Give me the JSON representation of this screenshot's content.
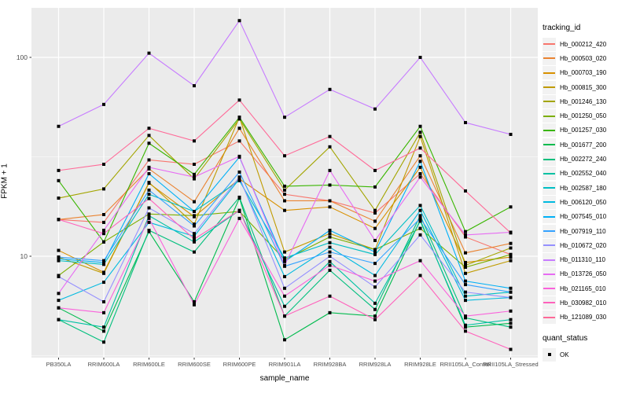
{
  "figure": {
    "x_axis": {
      "title": "sample_name"
    },
    "y_axis": {
      "title": "FPKM + 1",
      "tick_labels": [
        "100",
        "10"
      ],
      "tick_values": [
        100,
        10
      ],
      "minor_values": [
        31.6228,
        3.1623
      ],
      "scale": "log10"
    },
    "legend": {
      "tracking_title": "tracking_id",
      "quant_title": "quant_status",
      "quant_items": [
        {
          "label": "OK",
          "marker": "black-square"
        }
      ]
    },
    "colors": {
      "panel_bg": "#EBEBEB",
      "grid": "#FFFFFF",
      "axis_text": "#4D4D4D",
      "tick_mark": "#333333",
      "legend_key_bg": "#F2F2F2",
      "point": "#000000"
    }
  },
  "chart_data": {
    "type": "line",
    "title": "",
    "xlabel": "sample_name",
    "ylabel": "FPKM + 1",
    "y_scale": "log10",
    "ylim": [
      3.09,
      177
    ],
    "grid": true,
    "legend_position": "right",
    "point_marker": "filled-black-square",
    "x_categories": [
      "PB350LA",
      "RRIM600LA",
      "RRIM600LE",
      "RRIM600SE",
      "RRIM600PE",
      "RRIM901LA",
      "RRIM928BA",
      "RRIM928LA",
      "RRIM928LE",
      "RRII105LA_Control",
      "RRII105LA_Stressed"
    ],
    "series": [
      {
        "name": "Hb_000212_420",
        "color": "#F8766D",
        "values": [
          15.3,
          14.8,
          30.5,
          29,
          38,
          20.5,
          19,
          16.5,
          26,
          12.5,
          10.2
        ]
      },
      {
        "name": "Hb_000503_020",
        "color": "#EA8331",
        "values": [
          15.3,
          16.2,
          27.5,
          18.8,
          44,
          19,
          19,
          15,
          32,
          10.4,
          11.6
        ]
      },
      {
        "name": "Hb_000703_190",
        "color": "#D89000",
        "values": [
          10.7,
          8.3,
          23.3,
          15.8,
          24.5,
          17,
          17.7,
          13.8,
          28,
          9.3,
          9.9
        ]
      },
      {
        "name": "Hb_000815_300",
        "color": "#C09B00",
        "values": [
          9.9,
          8.2,
          23.5,
          14.5,
          50,
          10.5,
          13,
          10.8,
          40,
          8.2,
          9.5
        ]
      },
      {
        "name": "Hb_001246_130",
        "color": "#A3A500",
        "values": [
          19.6,
          21.8,
          40.5,
          24.5,
          49,
          21.5,
          35.5,
          17,
          42,
          9.0,
          11.0
        ]
      },
      {
        "name": "Hb_001250_050",
        "color": "#7CAE00",
        "values": [
          8.0,
          11.8,
          16.3,
          16.0,
          16.8,
          9.6,
          12.5,
          10.8,
          13.8,
          8.8,
          10.2
        ]
      },
      {
        "name": "Hb_001257_030",
        "color": "#39B600",
        "values": [
          24,
          11.8,
          37,
          25.8,
          50,
          22.5,
          22.8,
          22.3,
          45,
          13.3,
          17.7
        ]
      },
      {
        "name": "Hb_001677_200",
        "color": "#00BB4E",
        "values": [
          5.5,
          4.2,
          13.3,
          5.9,
          19.6,
          3.8,
          5.2,
          5.0,
          15.2,
          4.4,
          4.6
        ]
      },
      {
        "name": "Hb_002272_240",
        "color": "#00BF7D",
        "values": [
          4.8,
          3.7,
          13.5,
          10.5,
          19.8,
          5.0,
          8.5,
          5.4,
          16,
          4.9,
          4.4
        ]
      },
      {
        "name": "Hb_002552_040",
        "color": "#00C1A3",
        "values": [
          4.8,
          4.4,
          16,
          11.8,
          17,
          5.6,
          9.4,
          5.8,
          15,
          4.5,
          4.8
        ]
      },
      {
        "name": "Hb_002587_180",
        "color": "#00BFC4",
        "values": [
          9.5,
          9.1,
          20.5,
          16.8,
          24,
          9.8,
          11.7,
          10.2,
          18,
          6.3,
          6.6
        ]
      },
      {
        "name": "Hb_006120_050",
        "color": "#00BAE0",
        "values": [
          6.0,
          7.4,
          14.8,
          12.6,
          24.5,
          7.9,
          11.1,
          8.0,
          17,
          6.0,
          6.2
        ]
      },
      {
        "name": "Hb_007545_010",
        "color": "#00B0F6",
        "values": [
          9.7,
          9.3,
          26,
          16.8,
          31.5,
          9.4,
          13.5,
          10.5,
          30,
          7.5,
          6.9
        ]
      },
      {
        "name": "Hb_007919_110",
        "color": "#35A2FF",
        "values": [
          9.9,
          9.5,
          21.5,
          14.2,
          26.5,
          8.9,
          10.5,
          9.2,
          15.5,
          7.2,
          6.6
        ]
      },
      {
        "name": "Hb_010672_020",
        "color": "#9590FF",
        "values": [
          7.9,
          5.9,
          17.5,
          13.0,
          25,
          6.9,
          10.0,
          7.0,
          12.8,
          6.6,
          6.2
        ]
      },
      {
        "name": "Hb_011310_110",
        "color": "#C77CFF",
        "values": [
          45,
          58,
          105,
          72,
          153,
          50,
          69,
          55,
          100,
          47,
          41
        ]
      },
      {
        "name": "Hb_013726_050",
        "color": "#E76BF3",
        "values": [
          6.5,
          13.5,
          28,
          25,
          31.8,
          9.0,
          27,
          12,
          25,
          12.8,
          13.2
        ]
      },
      {
        "name": "Hb_021165_010",
        "color": "#FA62DB",
        "values": [
          5.5,
          5.2,
          15.5,
          5.7,
          15.5,
          6.3,
          9.0,
          7.5,
          9.5,
          5.0,
          5.3
        ]
      },
      {
        "name": "Hb_030982_010",
        "color": "#FF62BC",
        "values": [
          15.3,
          13.0,
          19.5,
          12.2,
          17,
          5.0,
          6.3,
          4.8,
          8.0,
          4.2,
          3.4
        ]
      },
      {
        "name": "Hb_121089_030",
        "color": "#FF6A98",
        "values": [
          27,
          29,
          44,
          38,
          61,
          32,
          40,
          27,
          35,
          21.3,
          13.1
        ]
      }
    ]
  }
}
